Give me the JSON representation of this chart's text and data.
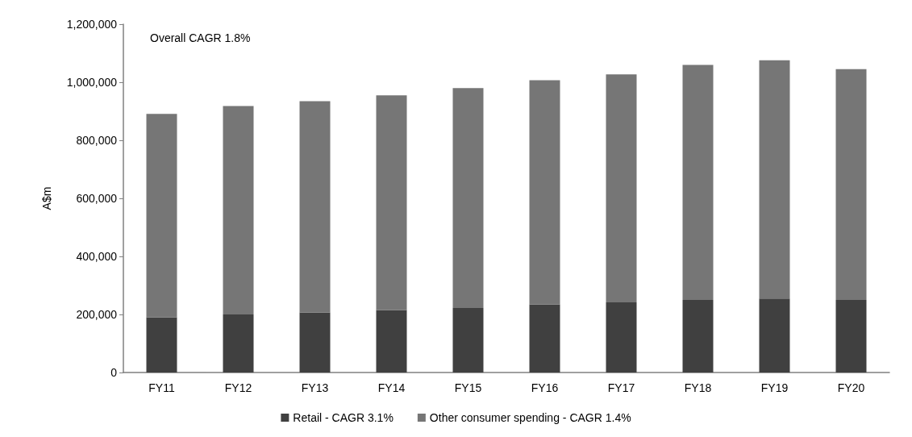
{
  "chart_data": {
    "type": "bar",
    "stacked": true,
    "ylabel": "A$m",
    "categories": [
      "FY11",
      "FY12",
      "FY13",
      "FY14",
      "FY15",
      "FY16",
      "FY17",
      "FY18",
      "FY19",
      "FY20"
    ],
    "series": [
      {
        "name": "Retail - CAGR 3.1%",
        "color": "#404040",
        "values": [
          190000,
          200000,
          207000,
          215000,
          222000,
          235000,
          242000,
          250000,
          255000,
          250000
        ]
      },
      {
        "name": "Other consumer spending - CAGR 1.4%",
        "color": "#767676",
        "values": [
          701000,
          718000,
          728000,
          740000,
          758000,
          772000,
          785000,
          810000,
          821000,
          795000
        ]
      }
    ],
    "ylim": [
      0,
      1200000
    ],
    "yticks": [
      0,
      {
        "value": 200000,
        "label": "200,000"
      },
      {
        "value": 400000,
        "label": "400,000"
      },
      {
        "value": 600000,
        "label": "600,000"
      },
      {
        "value": 800000,
        "label": "800,000"
      },
      {
        "value": 1000000,
        "label": "1,000,000"
      },
      {
        "value": 1200000,
        "label": "1,200,000"
      }
    ],
    "grid": false,
    "legend": "bottom",
    "annotations": [
      "Overall CAGR 1.8%"
    ]
  }
}
